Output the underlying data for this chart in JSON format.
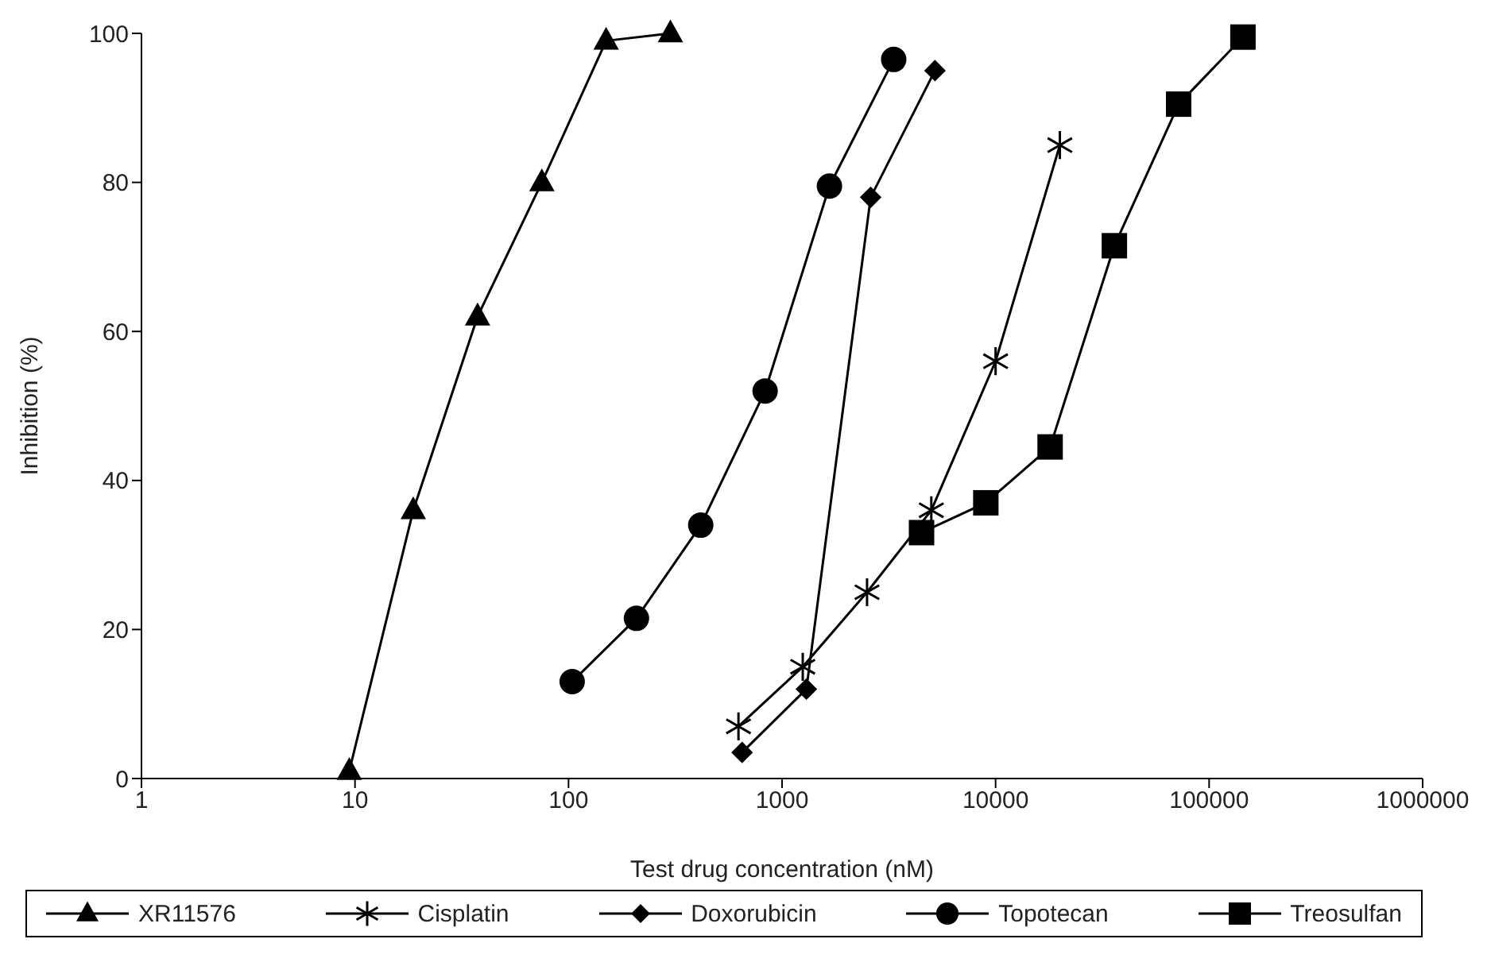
{
  "chart_data": {
    "type": "line",
    "xlabel": "Test drug concentration (nM)",
    "ylabel": "Inhibition (%)",
    "log": "x",
    "xlim": [
      1,
      1000000
    ],
    "xticks": [
      1,
      10,
      100,
      1000,
      10000,
      100000,
      1000000
    ],
    "ylim": [
      0,
      100
    ],
    "yticks": [
      0,
      20,
      40,
      60,
      80,
      100
    ],
    "grid": false,
    "legend": "bottom",
    "line_style": "solid",
    "series": [
      {
        "name": "XR11576",
        "color": "#000000",
        "marker": "triangle",
        "x": [
          9.4,
          18.75,
          37.5,
          75,
          150,
          300
        ],
        "values": [
          1,
          36,
          62,
          80,
          99,
          100
        ]
      },
      {
        "name": "Cisplatin",
        "color": "#000000",
        "marker": "cross",
        "x": [
          625,
          1250,
          2500,
          5000,
          10000,
          20000
        ],
        "values": [
          7,
          15,
          25,
          36,
          56,
          85
        ]
      },
      {
        "name": "Doxorubicin",
        "color": "#000000",
        "marker": "diamond",
        "x": [
          650,
          1300,
          2600,
          5200
        ],
        "values": [
          3.5,
          12,
          78,
          95
        ]
      },
      {
        "name": "Topotecan",
        "color": "#000000",
        "marker": "circle",
        "x": [
          104,
          208,
          416,
          833,
          1667,
          3333
        ],
        "values": [
          13,
          21.5,
          34,
          52,
          79.5,
          96.5
        ]
      },
      {
        "name": "Treosulfan",
        "color": "#000000",
        "marker": "square",
        "x": [
          4500,
          9000,
          18000,
          36000,
          72000,
          144000
        ],
        "values": [
          33,
          37,
          44.5,
          71.5,
          90.5,
          99.5
        ]
      }
    ]
  }
}
